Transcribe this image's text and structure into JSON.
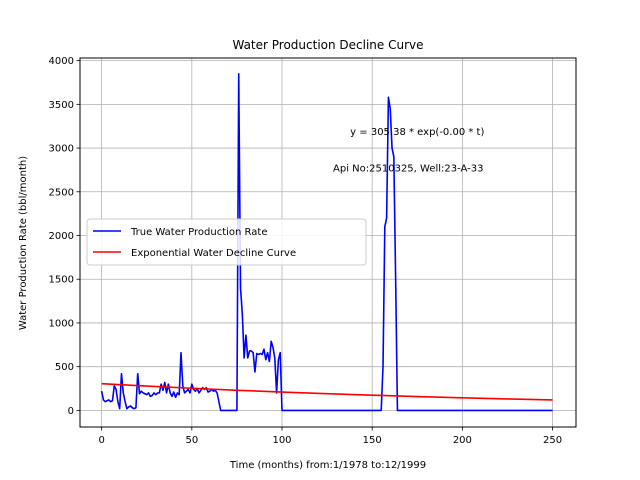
{
  "chart_data": {
    "type": "line",
    "title": "Water Production Decline Curve",
    "xlabel": "Time (months) from:1/1978 to:12/1999",
    "ylabel": "Water Production Rate (bbl/month)",
    "xlim": [
      -12,
      263
    ],
    "ylim": [
      -190,
      4030
    ],
    "x_ticks": [
      0,
      50,
      100,
      150,
      200,
      250
    ],
    "y_ticks": [
      0,
      500,
      1000,
      1500,
      2000,
      2500,
      3000,
      3500,
      4000
    ],
    "grid": true,
    "legend_position": "center-left",
    "annotations": [
      {
        "text": "y = 305.38 * exp(-0.00 * t)",
        "x": 175,
        "y": 3150
      },
      {
        "text": "Api No:2510325, Well:23-A-33",
        "x": 170,
        "y": 2730
      }
    ],
    "series": [
      {
        "name": "True Water Production Rate",
        "color": "#0000ff",
        "points": [
          [
            0,
            220
          ],
          [
            1,
            120
          ],
          [
            2,
            100
          ],
          [
            3,
            110
          ],
          [
            4,
            120
          ],
          [
            5,
            100
          ],
          [
            6,
            110
          ],
          [
            7,
            280
          ],
          [
            8,
            240
          ],
          [
            9,
            100
          ],
          [
            10,
            20
          ],
          [
            11,
            420
          ],
          [
            12,
            200
          ],
          [
            13,
            100
          ],
          [
            14,
            20
          ],
          [
            15,
            40
          ],
          [
            16,
            50
          ],
          [
            17,
            30
          ],
          [
            18,
            20
          ],
          [
            19,
            30
          ],
          [
            20,
            420
          ],
          [
            21,
            190
          ],
          [
            22,
            220
          ],
          [
            23,
            200
          ],
          [
            24,
            190
          ],
          [
            25,
            180
          ],
          [
            26,
            200
          ],
          [
            27,
            160
          ],
          [
            28,
            170
          ],
          [
            29,
            200
          ],
          [
            30,
            180
          ],
          [
            31,
            200
          ],
          [
            32,
            200
          ],
          [
            33,
            300
          ],
          [
            34,
            230
          ],
          [
            35,
            320
          ],
          [
            36,
            200
          ],
          [
            37,
            300
          ],
          [
            38,
            200
          ],
          [
            39,
            160
          ],
          [
            40,
            210
          ],
          [
            41,
            150
          ],
          [
            42,
            200
          ],
          [
            43,
            180
          ],
          [
            44,
            660
          ],
          [
            45,
            280
          ],
          [
            46,
            200
          ],
          [
            47,
            220
          ],
          [
            48,
            240
          ],
          [
            49,
            200
          ],
          [
            50,
            300
          ],
          [
            51,
            240
          ],
          [
            52,
            220
          ],
          [
            53,
            250
          ],
          [
            54,
            200
          ],
          [
            55,
            230
          ],
          [
            56,
            260
          ],
          [
            57,
            240
          ],
          [
            58,
            260
          ],
          [
            59,
            210
          ],
          [
            60,
            220
          ],
          [
            61,
            240
          ],
          [
            62,
            220
          ],
          [
            63,
            230
          ],
          [
            64,
            200
          ],
          [
            65,
            100
          ],
          [
            66,
            0
          ],
          [
            67,
            0
          ],
          [
            68,
            0
          ],
          [
            69,
            0
          ],
          [
            70,
            0
          ],
          [
            71,
            0
          ],
          [
            72,
            0
          ],
          [
            73,
            0
          ],
          [
            74,
            0
          ],
          [
            75,
            0
          ],
          [
            76,
            3850
          ],
          [
            77,
            1400
          ],
          [
            78,
            1100
          ],
          [
            79,
            600
          ],
          [
            80,
            860
          ],
          [
            81,
            600
          ],
          [
            82,
            680
          ],
          [
            83,
            680
          ],
          [
            84,
            660
          ],
          [
            85,
            440
          ],
          [
            86,
            650
          ],
          [
            87,
            640
          ],
          [
            88,
            650
          ],
          [
            89,
            640
          ],
          [
            90,
            700
          ],
          [
            91,
            580
          ],
          [
            92,
            660
          ],
          [
            93,
            560
          ],
          [
            94,
            790
          ],
          [
            95,
            720
          ],
          [
            96,
            600
          ],
          [
            97,
            200
          ],
          [
            98,
            580
          ],
          [
            99,
            660
          ],
          [
            100,
            0
          ],
          [
            105,
            0
          ],
          [
            110,
            0
          ],
          [
            115,
            0
          ],
          [
            120,
            0
          ],
          [
            125,
            0
          ],
          [
            130,
            0
          ],
          [
            135,
            0
          ],
          [
            140,
            0
          ],
          [
            145,
            0
          ],
          [
            150,
            0
          ],
          [
            155,
            0
          ],
          [
            156,
            500
          ],
          [
            157,
            2100
          ],
          [
            158,
            2200
          ],
          [
            159,
            3580
          ],
          [
            160,
            3450
          ],
          [
            161,
            3000
          ],
          [
            162,
            2900
          ],
          [
            163,
            1500
          ],
          [
            164,
            0
          ],
          [
            170,
            0
          ],
          [
            180,
            0
          ],
          [
            190,
            0
          ],
          [
            200,
            0
          ],
          [
            210,
            0
          ],
          [
            220,
            0
          ],
          [
            230,
            0
          ],
          [
            240,
            0
          ],
          [
            250,
            0
          ]
        ]
      },
      {
        "name": "Exponential Water Decline Curve",
        "color": "#ff0000",
        "points": [
          [
            0,
            305
          ],
          [
            25,
            278
          ],
          [
            50,
            253
          ],
          [
            75,
            230
          ],
          [
            100,
            210
          ],
          [
            125,
            191
          ],
          [
            150,
            174
          ],
          [
            175,
            158
          ],
          [
            200,
            144
          ],
          [
            225,
            131
          ],
          [
            250,
            120
          ]
        ]
      }
    ]
  }
}
